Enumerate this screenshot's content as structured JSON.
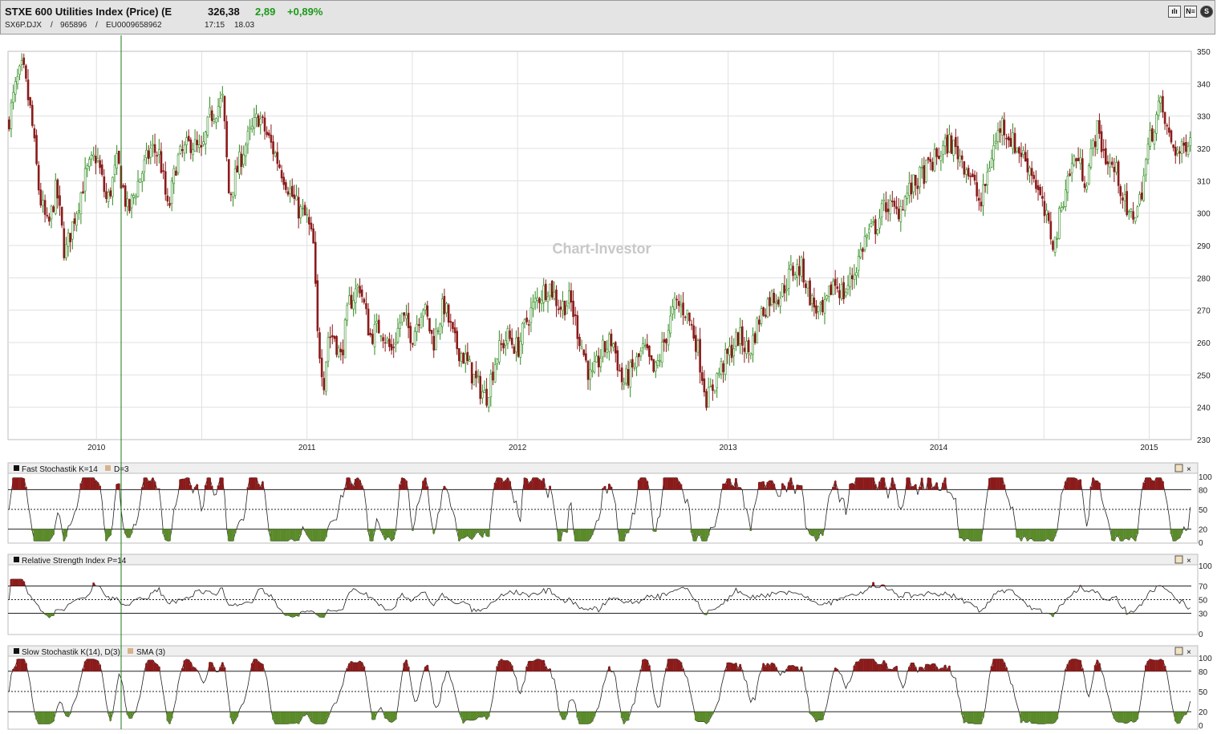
{
  "header": {
    "title": "STXE 600 Utilities Index (Price) (E",
    "price": "326,38",
    "change": "2,89",
    "change_pct": "+0,89%",
    "symbol": "SX6P.DJX",
    "sep1": "/",
    "wkn": "965896",
    "sep2": "/",
    "isin": "EU0009658962",
    "time": "17:15",
    "date": "18.03",
    "tools": [
      {
        "icon": "bar-chart-icon",
        "label": "ılı"
      },
      {
        "icon": "news-icon",
        "label": "N≡"
      },
      {
        "icon": "settings-icon",
        "label": "S"
      }
    ]
  },
  "watermark": "Chart-Investor",
  "panels": {
    "fast_stoch": {
      "label": "Fast Stochastik K=14",
      "label2": "D=3",
      "ticks": [
        "100",
        "80",
        "50",
        "20",
        "0"
      ]
    },
    "rsi": {
      "label": "Relative Strength Index P=14",
      "ticks": [
        "100",
        "70",
        "50",
        "30",
        "0"
      ]
    },
    "slow_stoch": {
      "label": "Slow Stochastik K(14), D(3)",
      "label2": "SMA (3)",
      "ticks": [
        "100",
        "80",
        "50",
        "20",
        "0"
      ]
    }
  },
  "colors": {
    "up": "#2e8b1e",
    "down": "#8b1a1a",
    "grid": "#e0e0e0",
    "cursor": "#1a7a1a"
  },
  "chart_data": {
    "type": "candlestick",
    "ylim": [
      230,
      350
    ],
    "yticks": [
      "350",
      "340",
      "330",
      "320",
      "310",
      "300",
      "290",
      "280",
      "270",
      "260",
      "250",
      "240",
      "230"
    ],
    "xticks": [
      "2010",
      "2011",
      "2012",
      "2013",
      "2014",
      "2015"
    ],
    "xtick_dates": [
      2010.0,
      2011.0,
      2012.0,
      2013.0,
      2014.0,
      2015.0
    ],
    "xlim": [
      2009.58,
      2015.2
    ],
    "price_series": {
      "x": [
        2009.58,
        2009.62,
        2009.65,
        2009.69,
        2009.73,
        2009.77,
        2009.81,
        2009.85,
        2009.9,
        2009.95,
        2010.0,
        2010.05,
        2010.1,
        2010.15,
        2010.2,
        2010.26,
        2010.3,
        2010.34,
        2010.38,
        2010.45,
        2010.5,
        2010.54,
        2010.6,
        2010.63,
        2010.7,
        2010.77,
        2010.85,
        2010.9,
        2010.95,
        2011.0,
        2011.03,
        2011.05,
        2011.08,
        2011.1,
        2011.13,
        2011.16,
        2011.2,
        2011.25,
        2011.3,
        2011.35,
        2011.4,
        2011.45,
        2011.5,
        2011.55,
        2011.6,
        2011.65,
        2011.7,
        2011.75,
        2011.8,
        2011.85,
        2011.9,
        2011.95,
        2012.0,
        2012.05,
        2012.1,
        2012.15,
        2012.2,
        2012.25,
        2012.3,
        2012.35,
        2012.4,
        2012.45,
        2012.5,
        2012.55,
        2012.6,
        2012.65,
        2012.7,
        2012.75,
        2012.8,
        2012.85,
        2012.9,
        2012.95,
        2013.0,
        2013.05,
        2013.1,
        2013.15,
        2013.2,
        2013.25,
        2013.3,
        2013.35,
        2013.4,
        2013.45,
        2013.5,
        2013.55,
        2013.6,
        2013.65,
        2013.7,
        2013.75,
        2013.8,
        2013.85,
        2013.9,
        2013.95,
        2014.0,
        2014.05,
        2014.1,
        2014.15,
        2014.2,
        2014.25,
        2014.3,
        2014.35,
        2014.4,
        2014.45,
        2014.5,
        2014.55,
        2014.6,
        2014.65,
        2014.7,
        2014.75,
        2014.8,
        2014.85,
        2014.9,
        2014.95,
        2015.0,
        2015.05,
        2015.1,
        2015.15,
        2015.2
      ],
      "y": [
        328,
        340,
        345,
        330,
        305,
        295,
        308,
        287,
        300,
        312,
        318,
        303,
        316,
        300,
        310,
        320,
        318,
        300,
        316,
        322,
        318,
        330,
        335,
        305,
        320,
        330,
        318,
        310,
        302,
        298,
        290,
        262,
        248,
        262,
        262,
        255,
        272,
        278,
        262,
        265,
        257,
        268,
        262,
        272,
        260,
        272,
        260,
        255,
        248,
        243,
        256,
        262,
        258,
        268,
        274,
        278,
        271,
        273,
        260,
        248,
        257,
        261,
        247,
        252,
        258,
        250,
        261,
        272,
        270,
        260,
        242,
        250,
        256,
        262,
        257,
        268,
        274,
        275,
        282,
        283,
        272,
        268,
        279,
        275,
        282,
        292,
        296,
        303,
        300,
        306,
        310,
        314,
        318,
        322,
        318,
        312,
        302,
        318,
        328,
        322,
        318,
        312,
        300,
        290,
        308,
        318,
        310,
        326,
        316,
        312,
        298,
        302,
        322,
        334,
        322,
        318,
        326
      ]
    }
  }
}
